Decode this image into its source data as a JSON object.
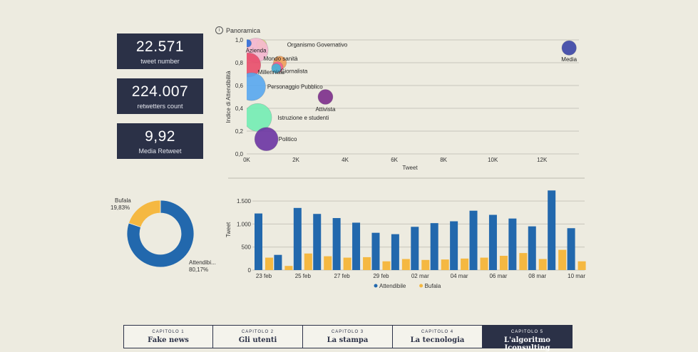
{
  "kpis": [
    {
      "value": "22.571",
      "label": "tweet number"
    },
    {
      "value": "224.007",
      "label": "retwetters count"
    },
    {
      "value": "9,92",
      "label": "Media Retweet"
    }
  ],
  "panel_title": "Panoramica",
  "chart_data": [
    {
      "type": "scatter",
      "title": "",
      "xlabel": "Tweet",
      "ylabel": "Indice di Attendibilità",
      "xlim": [
        0,
        13500
      ],
      "ylim": [
        0,
        1.0
      ],
      "x_ticks": [
        0,
        2000,
        4000,
        6000,
        8000,
        10000,
        12000
      ],
      "x_tick_labels": [
        "0K",
        "2K",
        "4K",
        "6K",
        "8K",
        "10K",
        "12K"
      ],
      "y_ticks": [
        0,
        0.2,
        0.4,
        0.6,
        0.8,
        1.0
      ],
      "y_tick_labels": [
        "0,0",
        "0,2",
        "0,4",
        "0,6",
        "0,8",
        "1,0"
      ],
      "grid": true,
      "points": [
        {
          "name": "Organismo Governativo",
          "x": 600,
          "y": 0.96,
          "r": 0.12,
          "color": "#f5ee8a"
        },
        {
          "name": "Azienda",
          "x": 380,
          "y": 0.91,
          "r": 0.5,
          "color": "#f4b6cf"
        },
        {
          "name": "",
          "x": 40,
          "y": 0.97,
          "r": 0.05,
          "color": "#2f6fd8"
        },
        {
          "name": "Mondo sanità",
          "x": 1350,
          "y": 0.8,
          "r": 0.2,
          "color": "#f0a05a"
        },
        {
          "name": "Giornalista",
          "x": 1250,
          "y": 0.76,
          "r": 0.15,
          "color": "#f06292"
        },
        {
          "name": "",
          "x": 1200,
          "y": 0.75,
          "r": 0.1,
          "color": "#41b6d8"
        },
        {
          "name": "Millennials",
          "x": 80,
          "y": 0.78,
          "r": 0.5,
          "color": "#e84d6a"
        },
        {
          "name": "Personaggio Pubblico",
          "x": 200,
          "y": 0.59,
          "r": 0.6,
          "color": "#56a7f0"
        },
        {
          "name": "Attivista",
          "x": 3200,
          "y": 0.5,
          "r": 0.25,
          "color": "#7b2d8b"
        },
        {
          "name": "Istruzione e studenti",
          "x": 450,
          "y": 0.32,
          "r": 0.6,
          "color": "#72edb4"
        },
        {
          "name": "Politico",
          "x": 800,
          "y": 0.13,
          "r": 0.48,
          "color": "#6a34a3"
        },
        {
          "name": "Media",
          "x": 13100,
          "y": 0.93,
          "r": 0.24,
          "color": "#3a45a6"
        }
      ]
    },
    {
      "type": "pie",
      "title": "",
      "slices": [
        {
          "name": "Attendibi...",
          "value": 80.17,
          "label": "80,17%",
          "color": "#2268ad"
        },
        {
          "name": "Bufala",
          "value": 19.83,
          "label": "19,83%",
          "color": "#f5b841"
        }
      ]
    },
    {
      "type": "bar",
      "title": "",
      "xlabel": "",
      "ylabel": "Tweet",
      "ylim": [
        0,
        1750
      ],
      "y_ticks": [
        0,
        500,
        1000,
        1500
      ],
      "y_tick_labels": [
        "0",
        "500",
        "1.000",
        "1.500"
      ],
      "categories": [
        "23 feb",
        "24 feb",
        "25 feb",
        "26 feb",
        "27 feb",
        "28 feb",
        "29 feb",
        "01 mar",
        "02 mar",
        "03 mar",
        "04 mar",
        "05 mar",
        "06 mar",
        "07 mar",
        "08 mar",
        "09 mar",
        "10 mar"
      ],
      "tick_labels": [
        "23 feb",
        "",
        "25 feb",
        "",
        "27 feb",
        "",
        "29 feb",
        "",
        "02 mar",
        "",
        "04 mar",
        "",
        "06 mar",
        "",
        "08 mar",
        "",
        "10 mar"
      ],
      "series": [
        {
          "name": "Attendibile",
          "color": "#2268ad",
          "values": [
            1230,
            330,
            1350,
            1220,
            1130,
            1030,
            810,
            780,
            940,
            1020,
            1060,
            1290,
            1200,
            1120,
            950,
            1730,
            910
          ]
        },
        {
          "name": "Bufala",
          "color": "#f5b841",
          "values": [
            270,
            90,
            360,
            300,
            270,
            280,
            190,
            240,
            220,
            230,
            250,
            270,
            310,
            370,
            240,
            440,
            190
          ]
        }
      ],
      "legend_position": "bottom"
    }
  ],
  "tabs": [
    {
      "kicker": "CAPITOLO 1",
      "title": "Fake news",
      "active": false
    },
    {
      "kicker": "CAPITOLO 2",
      "title": "Gli utenti",
      "active": false
    },
    {
      "kicker": "CAPITOLO 3",
      "title": "La stampa",
      "active": false
    },
    {
      "kicker": "CAPITOLO 4",
      "title": "La tecnologia",
      "active": false
    },
    {
      "kicker": "CAPITOLO 5",
      "title": "L'algoritmo Iconsulting",
      "active": true
    }
  ]
}
